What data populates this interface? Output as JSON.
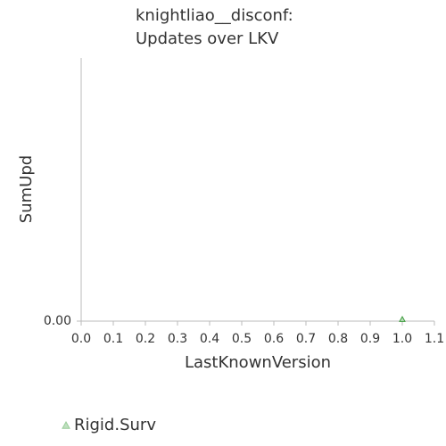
{
  "chart_data": {
    "type": "scatter",
    "title": [
      "knightliao__disconf:",
      "Updates over LKV"
    ],
    "x_label": "LastKnownVersion",
    "y_label": "SumUpd",
    "series": [
      {
        "name": "Rigid.Surv",
        "color": "#3a9a3a",
        "marker": "triangle",
        "x": [
          1.0
        ],
        "values": [
          0
        ]
      }
    ],
    "xlim": [
      0,
      1.1
    ],
    "xticks": [
      {
        "value": 0,
        "label": "0.0"
      },
      0.1,
      0.2,
      0.3,
      0.4,
      0.5,
      0.6,
      0.7,
      0.8,
      0.9,
      {
        "value": 1,
        "label": "1.0"
      },
      1.1
    ],
    "ylim": [
      0,
      1
    ],
    "yticks": [
      {
        "value": 0,
        "label": "0.00"
      }
    ],
    "legend": "bottom-left"
  }
}
